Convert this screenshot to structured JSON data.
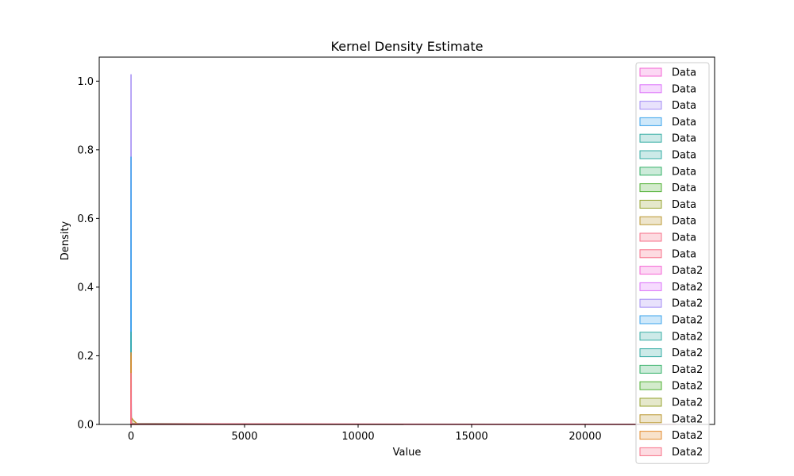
{
  "chart_data": {
    "type": "area",
    "title": "Kernel Density Estimate",
    "xlabel": "Value",
    "ylabel": "Density",
    "xlim": [
      -1400,
      25700
    ],
    "ylim": [
      0,
      1.07
    ],
    "xticks": [
      0,
      5000,
      10000,
      15000,
      20000
    ],
    "xtick_labels": [
      "0",
      "5000",
      "10000",
      "15000",
      "20000"
    ],
    "yticks": [
      0.0,
      0.2,
      0.4,
      0.6,
      0.8,
      1.0
    ],
    "ytick_labels": [
      "0.0",
      "0.2",
      "0.4",
      "0.6",
      "0.8",
      "1.0"
    ],
    "grid": false,
    "legend_position": "upper right",
    "series": [
      {
        "name": "Data",
        "color": "#f564d4",
        "x": [
          -10,
          0,
          10
        ],
        "y": [
          0,
          0.05,
          0
        ]
      },
      {
        "name": "Data",
        "color": "#dc71fa",
        "x": [
          -10,
          0,
          10
        ],
        "y": [
          0,
          0.35,
          0
        ]
      },
      {
        "name": "Data",
        "color": "#a38cf4",
        "x": [
          -10,
          0,
          10
        ],
        "y": [
          0,
          1.02,
          0
        ]
      },
      {
        "name": "Data",
        "color": "#3ba3ec",
        "x": [
          -10,
          0,
          10
        ],
        "y": [
          0,
          0.78,
          0
        ]
      },
      {
        "name": "Data",
        "color": "#36ada4",
        "x": [
          -10,
          0,
          10
        ],
        "y": [
          0,
          0.27,
          0
        ]
      },
      {
        "name": "Data",
        "color": "#35aca4",
        "x": [
          -10,
          0,
          10
        ],
        "y": [
          0,
          0.21,
          0
        ]
      },
      {
        "name": "Data",
        "color": "#32b166",
        "x": [
          -10,
          0,
          10,
          5000,
          12000
        ],
        "y": [
          0,
          0.1,
          0.003,
          0.0015,
          0
        ]
      },
      {
        "name": "Data",
        "color": "#4fb032",
        "x": [
          -10,
          0,
          10
        ],
        "y": [
          0,
          0.08,
          0
        ]
      },
      {
        "name": "Data",
        "color": "#97a431",
        "x": [
          -10,
          0,
          10
        ],
        "y": [
          0,
          0.06,
          0
        ]
      },
      {
        "name": "Data",
        "color": "#bb9832",
        "x": [
          -10,
          0,
          10
        ],
        "y": [
          0,
          0.05,
          0
        ]
      },
      {
        "name": "Data",
        "color": "#f77189",
        "x": [
          -10,
          0,
          10
        ],
        "y": [
          0,
          0.04,
          0
        ]
      },
      {
        "name": "Data",
        "color": "#f77189",
        "x": [
          -10,
          0,
          10
        ],
        "y": [
          0,
          0.03,
          0
        ]
      },
      {
        "name": "Data2",
        "color": "#f564d4",
        "x": [
          -10,
          0,
          10
        ],
        "y": [
          0,
          0.05,
          0
        ]
      },
      {
        "name": "Data2",
        "color": "#dc71fa",
        "x": [
          -10,
          0,
          10
        ],
        "y": [
          0,
          0.06,
          0
        ]
      },
      {
        "name": "Data2",
        "color": "#a38cf4",
        "x": [
          -10,
          0,
          10
        ],
        "y": [
          0,
          0.07,
          0
        ]
      },
      {
        "name": "Data2",
        "color": "#3ba3ec",
        "x": [
          -10,
          0,
          10
        ],
        "y": [
          0,
          0.08,
          0
        ]
      },
      {
        "name": "Data2",
        "color": "#36ada4",
        "x": [
          -10,
          0,
          10
        ],
        "y": [
          0,
          0.09,
          0
        ]
      },
      {
        "name": "Data2",
        "color": "#35aca4",
        "x": [
          -10,
          0,
          10
        ],
        "y": [
          0,
          0.1,
          0
        ]
      },
      {
        "name": "Data2",
        "color": "#32b166",
        "x": [
          -10,
          0,
          10
        ],
        "y": [
          0,
          0.11,
          0
        ]
      },
      {
        "name": "Data2",
        "color": "#4fb032",
        "x": [
          -10,
          0,
          10
        ],
        "y": [
          0,
          0.12,
          0
        ]
      },
      {
        "name": "Data2",
        "color": "#97a431",
        "x": [
          -10,
          0,
          10
        ],
        "y": [
          0,
          0.13,
          0
        ]
      },
      {
        "name": "Data2",
        "color": "#bb9832",
        "x": [
          -10,
          0,
          10,
          100,
          300
        ],
        "y": [
          0,
          0.2,
          0.02,
          0.012,
          0
        ]
      },
      {
        "name": "Data2",
        "color": "#e38c2f",
        "x": [
          -10,
          0,
          10
        ],
        "y": [
          0,
          0.21,
          0
        ]
      },
      {
        "name": "Data2",
        "color": "#f77189",
        "x": [
          -10,
          0,
          10,
          16000,
          22000,
          24000
        ],
        "y": [
          0,
          0.15,
          0.002,
          0.0006,
          0.0006,
          0
        ]
      }
    ]
  }
}
